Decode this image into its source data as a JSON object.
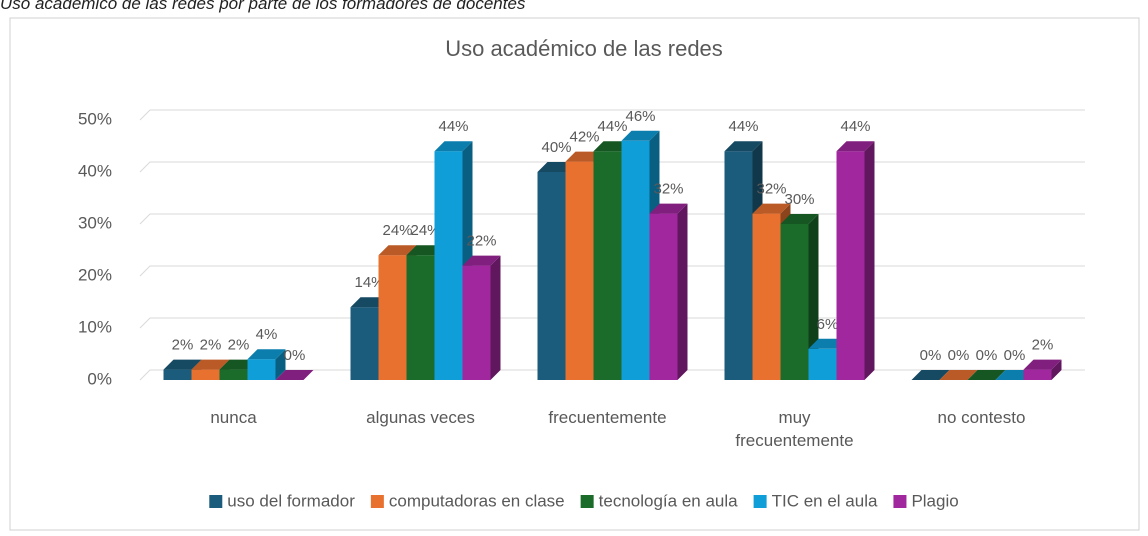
{
  "caption": "Uso académico de las redes por parte de los formadores de docentes",
  "chart_data": {
    "type": "bar3d",
    "title": "Uso académico de las redes",
    "categories": [
      "nunca",
      "algunas veces",
      "frecuentemente",
      "muy frecuentemente",
      "no contesto"
    ],
    "series": [
      {
        "name": "uso del formador",
        "color": "#1b5b7b",
        "values": [
          2,
          14,
          40,
          44,
          0
        ],
        "value_labels": [
          "2%",
          "14%",
          "40%",
          "44%",
          "0%"
        ]
      },
      {
        "name": "computadoras en clase",
        "color": "#e8712f",
        "values": [
          2,
          24,
          42,
          32,
          0
        ],
        "value_labels": [
          "2%",
          "24%",
          "42%",
          "32%",
          "0%"
        ]
      },
      {
        "name": "tecnología en aula",
        "color": "#1b6b2b",
        "values": [
          2,
          24,
          44,
          30,
          0
        ],
        "value_labels": [
          "2%",
          "24%",
          "44%",
          "30%",
          "0%"
        ]
      },
      {
        "name": "TIC en el aula",
        "color": "#0f9ed8",
        "values": [
          4,
          44,
          46,
          6,
          0
        ],
        "value_labels": [
          "4%",
          "44%",
          "46%",
          "6%",
          "0%"
        ]
      },
      {
        "name": "Plagio",
        "color": "#a0279d",
        "values": [
          0,
          22,
          32,
          44,
          2
        ],
        "value_labels": [
          "0%",
          "22%",
          "32%",
          "44%",
          "2%"
        ]
      }
    ],
    "ylim": [
      0,
      50
    ],
    "yticks": [
      {
        "value": 0,
        "label": "0%"
      },
      {
        "value": 10,
        "label": "10%"
      },
      {
        "value": 20,
        "label": "20%"
      },
      {
        "value": 30,
        "label": "30%"
      },
      {
        "value": 40,
        "label": "40%"
      },
      {
        "value": 50,
        "label": "50%"
      }
    ],
    "grid": true,
    "legend": "bottom"
  }
}
